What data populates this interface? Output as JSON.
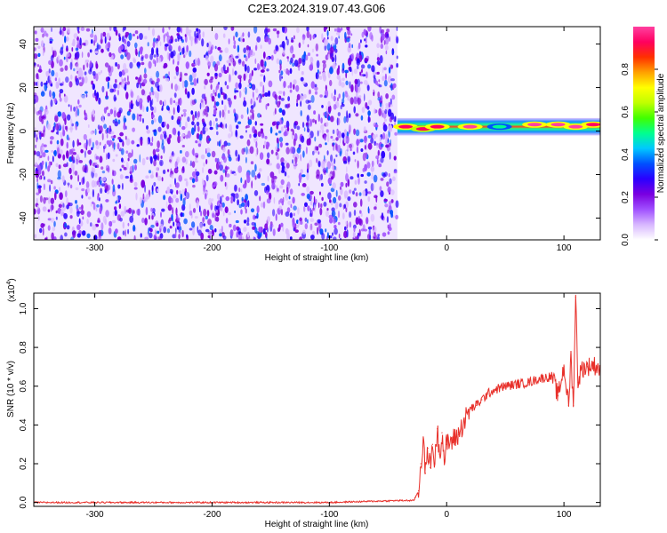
{
  "title": "C2E3.2024.319.07.43.G06",
  "chart_data": [
    {
      "type": "heatmap",
      "name": "spectrogram",
      "xlabel": "Height of straight line (km)",
      "ylabel": "Frequency (Hz)",
      "xlim": [
        -352,
        131
      ],
      "ylim": [
        -50,
        48
      ],
      "xticks": [
        -300,
        -200,
        -100,
        0,
        100
      ],
      "yticks": [
        -40,
        -20,
        0,
        20,
        40
      ],
      "noise_region": {
        "x_start": -352,
        "x_end": -42,
        "frequency_range": [
          -50,
          48
        ],
        "typical_amplitude": [
          0.05,
          0.35
        ]
      },
      "signal_band": {
        "x_start": -42,
        "x_end": 131,
        "center_frequency": 2,
        "half_width": 4
      },
      "signal_peaks": [
        {
          "x": -35,
          "frequency": 2,
          "amplitude": 0.95
        },
        {
          "x": -20,
          "frequency": 1,
          "amplitude": 0.9
        },
        {
          "x": -8,
          "frequency": 2,
          "amplitude": 0.95
        },
        {
          "x": 20,
          "frequency": 2,
          "amplitude": 0.98
        },
        {
          "x": 45,
          "frequency": 2,
          "amplitude": 0.5
        },
        {
          "x": 75,
          "frequency": 3,
          "amplitude": 0.98
        },
        {
          "x": 95,
          "frequency": 3,
          "amplitude": 0.98
        },
        {
          "x": 110,
          "frequency": 2,
          "amplitude": 0.98
        },
        {
          "x": 125,
          "frequency": 3,
          "amplitude": 0.95
        }
      ],
      "colorbar": {
        "label": "Normalized spectral amplitude",
        "range": [
          0,
          1
        ],
        "ticks": [
          "0.0",
          "0.2",
          "0.4",
          "0.6",
          "0.8"
        ],
        "colors": [
          "#ffffff",
          "#d8b8ff",
          "#a050ff",
          "#7a00e0",
          "#2a00ff",
          "#0050ff",
          "#00c8ff",
          "#00ff90",
          "#40ff00",
          "#c0ff00",
          "#ffff00",
          "#ffa000",
          "#ff3000",
          "#ff0060",
          "#ff40a0"
        ]
      }
    },
    {
      "type": "line",
      "name": "snr",
      "xlabel": "Height of straight line (km)",
      "ylabel": "SNR (10 * v/v)",
      "y_multiplier": "(x10",
      "y_multiplier_exp": "4",
      "xlim": [
        -352,
        131
      ],
      "ylim": [
        -0.02,
        1.08
      ],
      "xticks": [
        -300,
        -200,
        -100,
        0,
        100
      ],
      "yticks": [
        "0.0",
        "0.2",
        "0.4",
        "0.6",
        "0.8",
        "1.0"
      ],
      "color": "#e8302a",
      "series": [
        {
          "x": [
            -352,
            -100,
            -40,
            -28,
            -24,
            -22,
            -20,
            -18,
            -16,
            -14,
            -12,
            -10,
            -8,
            -6,
            -4,
            -2,
            0,
            5,
            10,
            15,
            20,
            25,
            30,
            35,
            40,
            50,
            60,
            70,
            80,
            90,
            95,
            100,
            104,
            106,
            108,
            110,
            112,
            115,
            120,
            125,
            131
          ],
          "y": [
            0.0,
            0.0,
            0.01,
            0.01,
            0.06,
            0.2,
            0.32,
            0.15,
            0.28,
            0.18,
            0.3,
            0.2,
            0.38,
            0.25,
            0.36,
            0.22,
            0.3,
            0.32,
            0.35,
            0.42,
            0.48,
            0.5,
            0.53,
            0.56,
            0.58,
            0.6,
            0.61,
            0.62,
            0.64,
            0.65,
            0.55,
            0.7,
            0.5,
            0.76,
            0.5,
            1.06,
            0.62,
            0.69,
            0.7,
            0.71,
            0.69
          ]
        }
      ]
    }
  ]
}
